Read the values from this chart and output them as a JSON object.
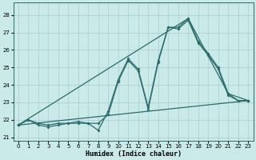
{
  "xlabel": "Humidex (Indice chaleur)",
  "ylabel": "",
  "background_color": "#caeaea",
  "grid_color": "#aacccc",
  "line_color": "#2d6b6b",
  "xlim": [
    -0.5,
    23.5
  ],
  "ylim": [
    20.8,
    28.7
  ],
  "yticks": [
    21,
    22,
    23,
    24,
    25,
    26,
    27,
    28
  ],
  "xticks": [
    0,
    1,
    2,
    3,
    4,
    5,
    6,
    7,
    8,
    9,
    10,
    11,
    12,
    13,
    14,
    15,
    16,
    17,
    18,
    19,
    20,
    21,
    22,
    23
  ],
  "series1_x": [
    0,
    1,
    2,
    3,
    4,
    5,
    6,
    7,
    8,
    9,
    10,
    11,
    12,
    13,
    14,
    15,
    16,
    17,
    18,
    19,
    20,
    21,
    22,
    23
  ],
  "series1_y": [
    21.7,
    22.0,
    21.7,
    21.6,
    21.7,
    21.8,
    21.8,
    21.8,
    21.4,
    22.5,
    24.3,
    25.5,
    24.9,
    22.7,
    25.4,
    27.3,
    27.3,
    27.8,
    26.5,
    25.8,
    25.0,
    23.5,
    23.1,
    23.1
  ],
  "series2_x": [
    0,
    1,
    2,
    3,
    4,
    5,
    6,
    7,
    8,
    9,
    10,
    11,
    12,
    13,
    14,
    15,
    16,
    17,
    18,
    19,
    20,
    21,
    22,
    23
  ],
  "series2_y": [
    21.7,
    22.0,
    21.8,
    21.7,
    21.8,
    21.8,
    21.9,
    21.8,
    21.8,
    22.3,
    24.2,
    25.4,
    24.8,
    22.6,
    25.3,
    27.3,
    27.2,
    27.7,
    26.4,
    25.7,
    24.9,
    23.4,
    23.1,
    23.1
  ],
  "series3_x": [
    0,
    23
  ],
  "series3_y": [
    21.7,
    23.1
  ],
  "series4_x": [
    0,
    17,
    21,
    23
  ],
  "series4_y": [
    21.7,
    27.8,
    23.5,
    23.1
  ]
}
